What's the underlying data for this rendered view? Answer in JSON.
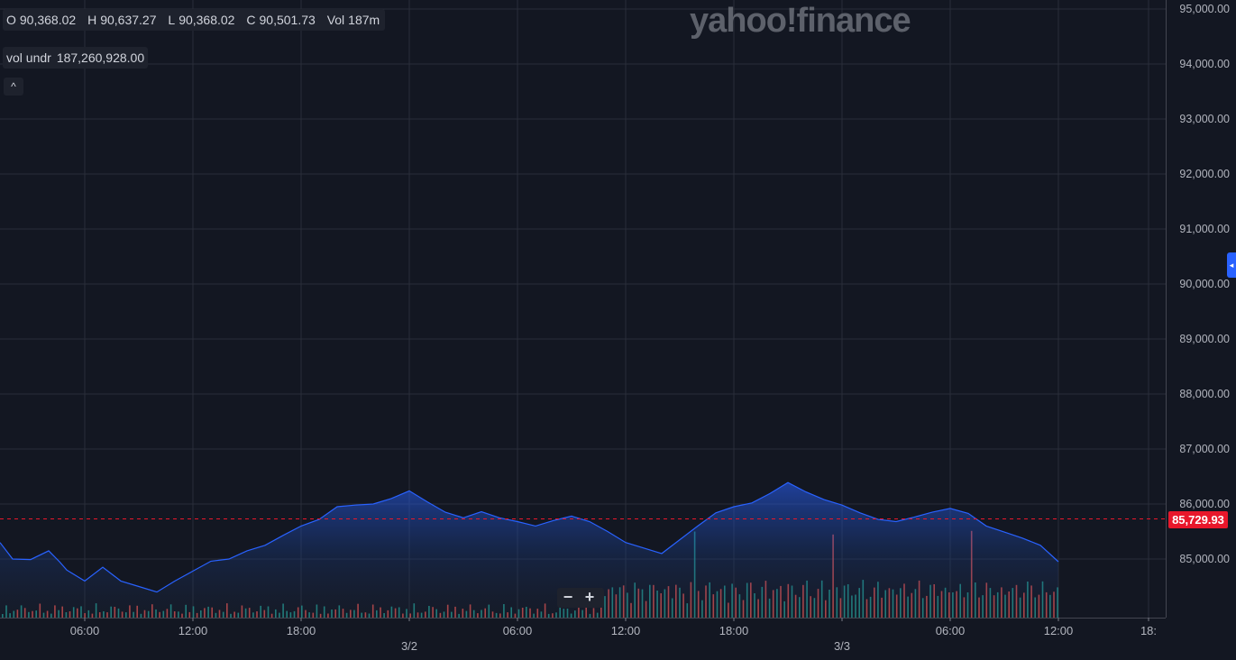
{
  "watermark": "yahoo!finance",
  "ohlc": {
    "o_label": "O",
    "o": "90,368.02",
    "h_label": "H",
    "h": "90,637.27",
    "l_label": "L",
    "l": "90,368.02",
    "c_label": "C",
    "c": "90,501.73",
    "vol_label": "Vol",
    "vol": "187m"
  },
  "volume_row": {
    "label": "vol undr",
    "value": "187,260,928.00"
  },
  "collapse_icon": "^",
  "zoom": {
    "minus": "−",
    "plus": "+"
  },
  "side_handle_icon": "◂",
  "current_price": {
    "label": "85,729.93",
    "value": 85729.93,
    "color": "#e8172b"
  },
  "colors": {
    "line": "#2962ff",
    "up": "#26a69a",
    "down": "#ef5350",
    "grid": "#2a2e39"
  },
  "chart_data": {
    "type": "area",
    "y_axis": {
      "min": 84000,
      "max": 95000,
      "ticks": [
        85000,
        86000,
        87000,
        88000,
        89000,
        90000,
        91000,
        92000,
        93000,
        94000,
        95000
      ],
      "tick_labels": [
        "85,000.00",
        "86,000.00",
        "87,000.00",
        "88,000.00",
        "89,000.00",
        "90,000.00",
        "91,000.00",
        "92,000.00",
        "93,000.00",
        "94,000.00",
        "95,000.00"
      ],
      "side": "right"
    },
    "x_axis": {
      "range_hours": [
        0,
        59.5
      ],
      "ticks": [
        {
          "t": 6,
          "label": "06:00"
        },
        {
          "t": 12,
          "label": "12:00"
        },
        {
          "t": 18,
          "label": "18:00"
        },
        {
          "t": 24,
          "label": "3/2"
        },
        {
          "t": 30,
          "label": "06:00"
        },
        {
          "t": 36,
          "label": "12:00"
        },
        {
          "t": 42,
          "label": "18:00"
        },
        {
          "t": 48,
          "label": "3/3"
        },
        {
          "t": 54,
          "label": "06:00"
        },
        {
          "t": 60,
          "label": "12:00"
        },
        {
          "t": 65,
          "label": "18:"
        }
      ]
    },
    "grid": true,
    "series": [
      {
        "values": [
          [
            1.3,
            85300
          ],
          [
            2,
            85000
          ],
          [
            3,
            84990
          ],
          [
            4,
            85150
          ],
          [
            4.6,
            84950
          ],
          [
            5,
            84800
          ],
          [
            6,
            84600
          ],
          [
            7,
            84850
          ],
          [
            8,
            84600
          ],
          [
            9,
            84500
          ],
          [
            10,
            84400
          ],
          [
            11,
            84600
          ],
          [
            12,
            84780
          ],
          [
            13,
            84960
          ],
          [
            14,
            85000
          ],
          [
            15,
            85150
          ],
          [
            16,
            85250
          ],
          [
            17,
            85430
          ],
          [
            18,
            85600
          ],
          [
            19,
            85720
          ],
          [
            20,
            85950
          ],
          [
            21,
            85980
          ],
          [
            22,
            86000
          ],
          [
            23,
            86100
          ],
          [
            24,
            86240
          ],
          [
            25,
            86040
          ],
          [
            26,
            85850
          ],
          [
            27,
            85750
          ],
          [
            28,
            85860
          ],
          [
            29,
            85750
          ],
          [
            30,
            85680
          ],
          [
            31,
            85600
          ],
          [
            32,
            85700
          ],
          [
            33,
            85780
          ],
          [
            34,
            85680
          ],
          [
            35,
            85500
          ],
          [
            36,
            85300
          ],
          [
            37,
            85200
          ],
          [
            38,
            85100
          ],
          [
            39,
            85350
          ],
          [
            40,
            85600
          ],
          [
            41,
            85840
          ],
          [
            42,
            85950
          ],
          [
            43,
            86020
          ],
          [
            44,
            86190
          ],
          [
            45,
            86390
          ],
          [
            46,
            86220
          ],
          [
            47,
            86080
          ],
          [
            48,
            85980
          ],
          [
            49,
            85840
          ],
          [
            50,
            85720
          ],
          [
            51,
            85680
          ],
          [
            52,
            85760
          ],
          [
            53,
            85850
          ],
          [
            54,
            85920
          ],
          [
            55,
            85830
          ],
          [
            56,
            85600
          ],
          [
            57,
            85490
          ],
          [
            58,
            85380
          ],
          [
            59,
            85250
          ],
          [
            60,
            84950
          ]
        ]
      }
    ],
    "current_price_line": 85729.93
  }
}
